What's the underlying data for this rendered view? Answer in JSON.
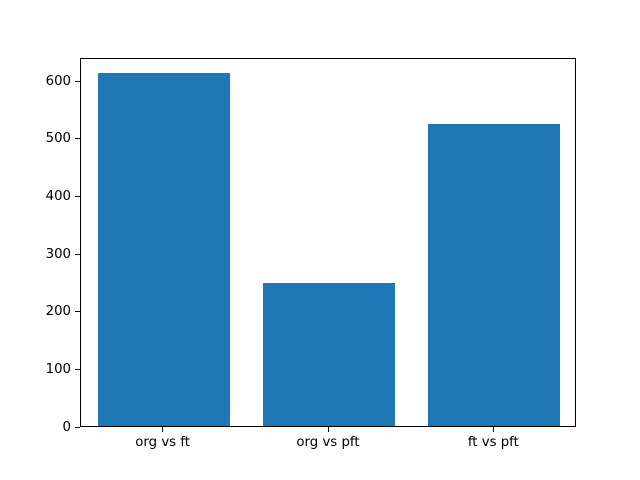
{
  "chart_data": {
    "type": "bar",
    "title": "",
    "xlabel": "",
    "ylabel": "",
    "categories": [
      "org vs ft",
      "org vs pft",
      "ft vs pft"
    ],
    "values": [
      612,
      248,
      524
    ],
    "ylim": [
      0,
      640
    ],
    "yticks": [
      0,
      100,
      200,
      300,
      400,
      500,
      600
    ],
    "bar_width_fraction": 0.8,
    "grid": false,
    "legend_position": "none",
    "bar_color": "#1f77b4",
    "spine_color": "#000000",
    "text_color": "#000000",
    "background_color": "#ffffff"
  }
}
